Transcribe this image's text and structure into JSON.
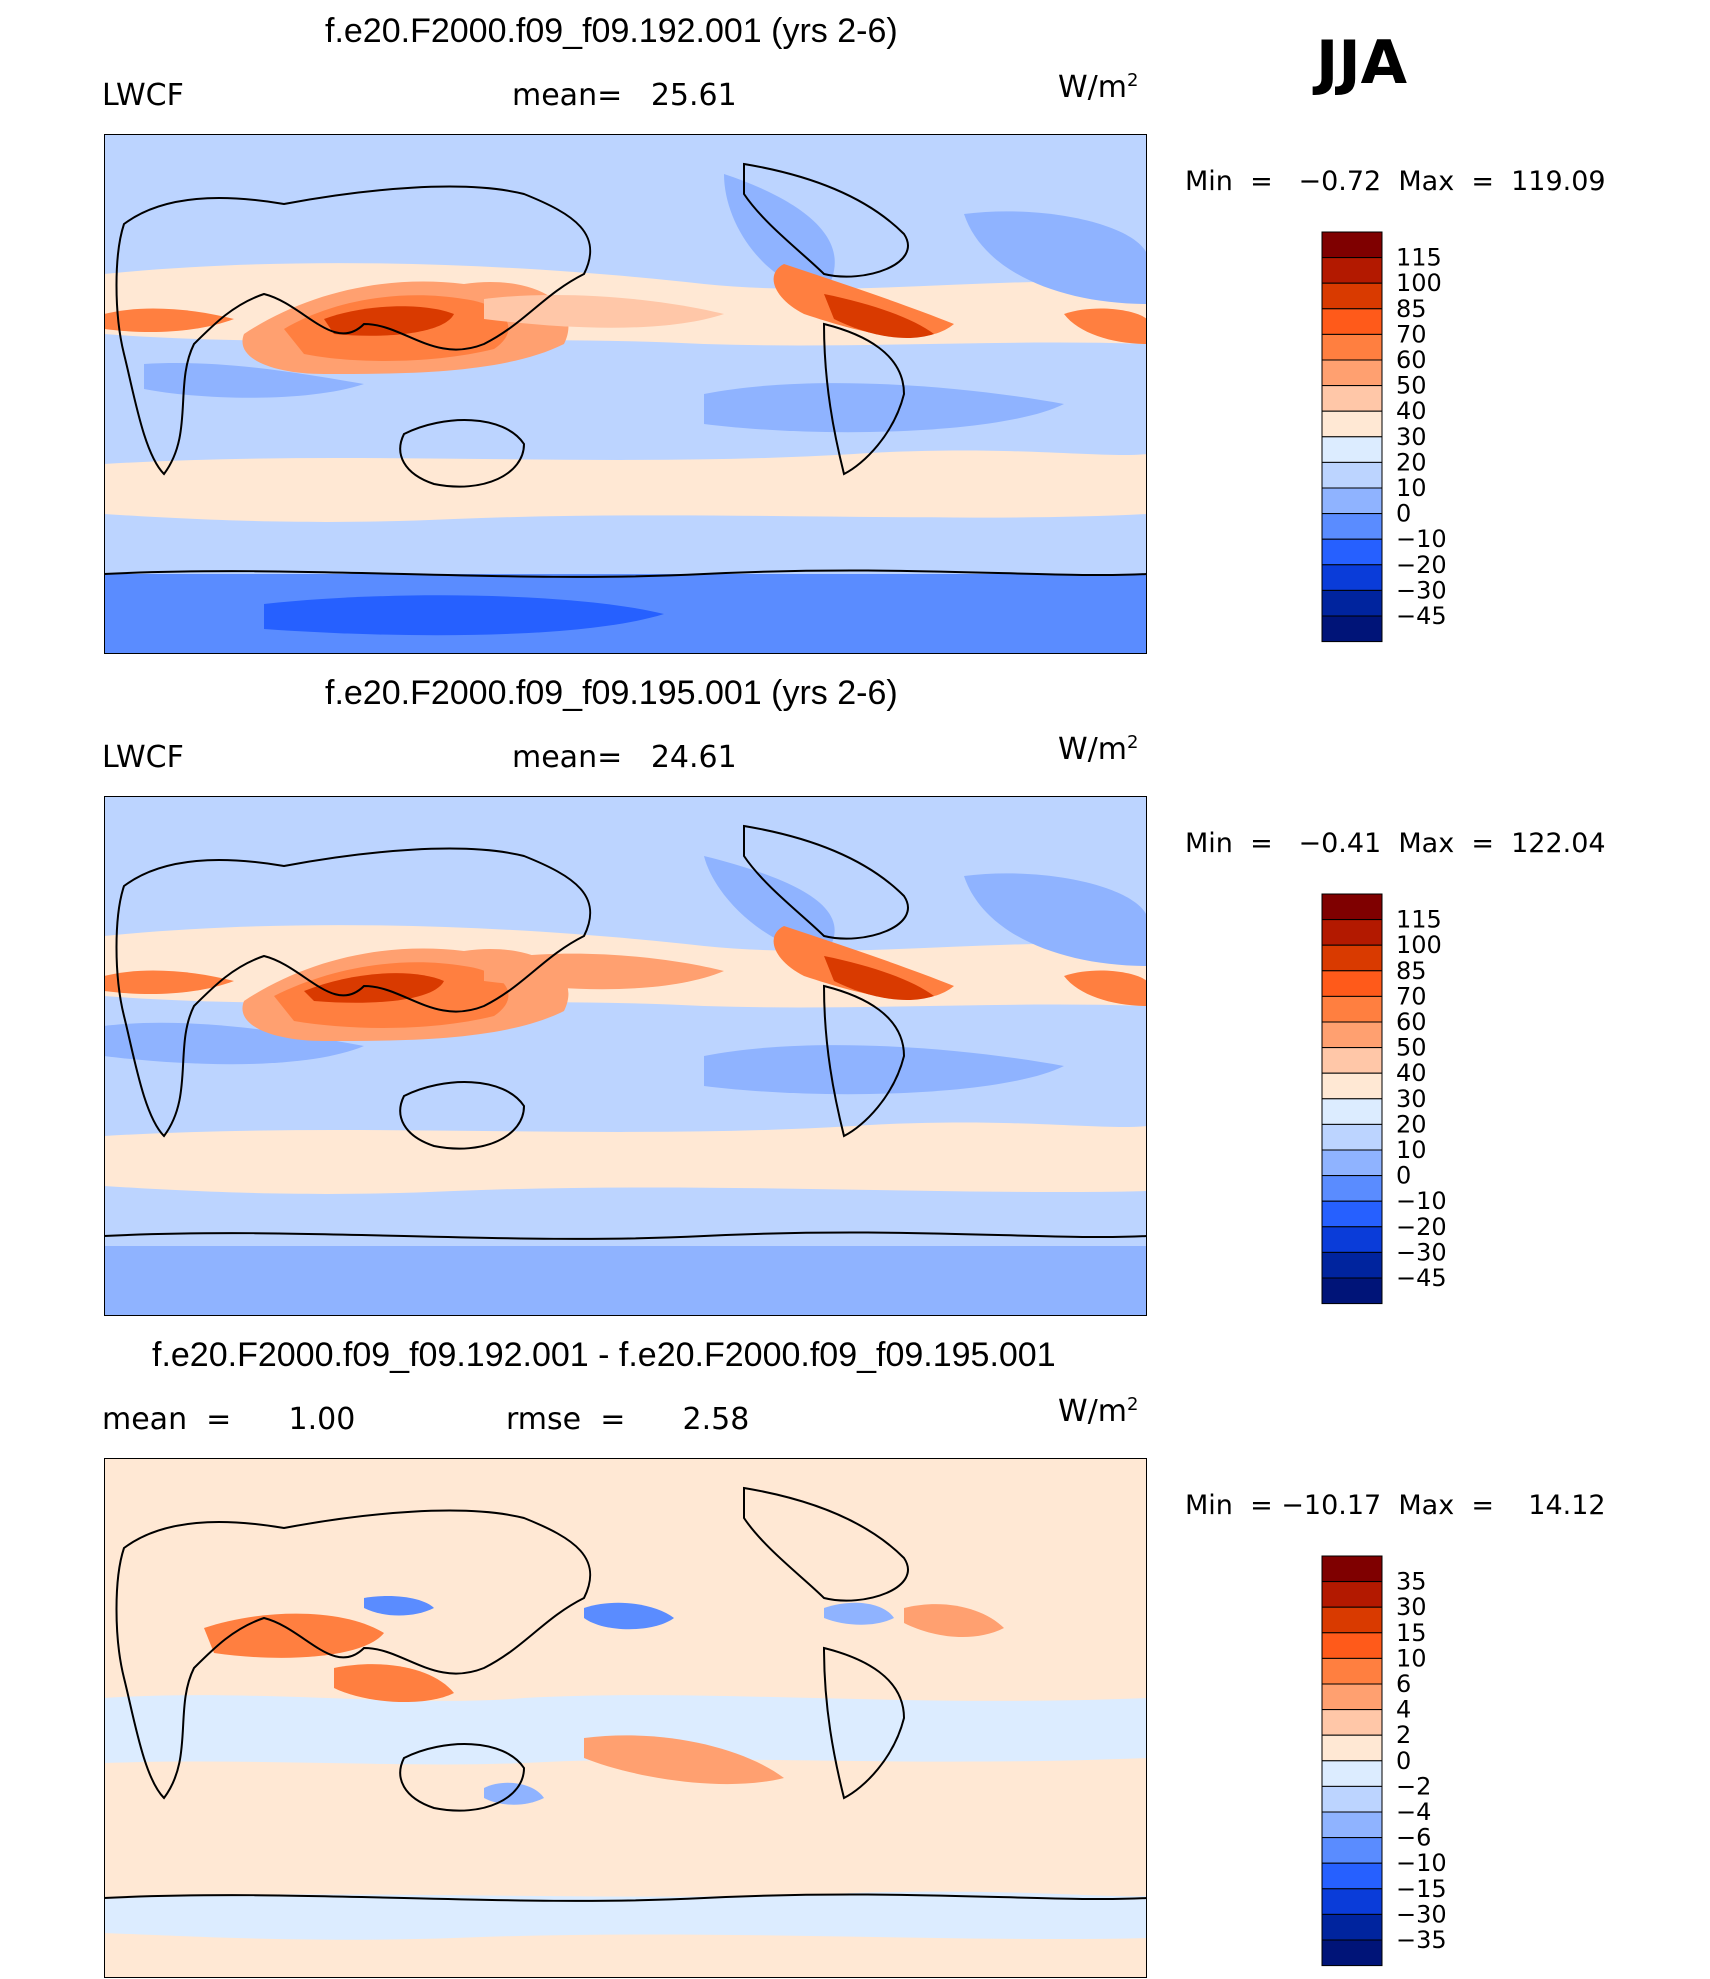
{
  "season": "JJA",
  "panels": [
    {
      "title": "f.e20.F2000.f09_f09.192.001 (yrs 2-6)",
      "left_label": "LWCF",
      "center_label": "mean=   25.61",
      "units_base": "W/m",
      "units_exp": "2",
      "minmax": "Min  =   −0.72  Max  =  119.09",
      "colorbar_labels": [
        "115",
        "100",
        "85",
        "70",
        "60",
        "50",
        "40",
        "30",
        "20",
        "10",
        "0",
        "−10",
        "−20",
        "−30",
        "−45"
      ],
      "colors": [
        "#7f0000",
        "#b31900",
        "#d93a00",
        "#ff5a1a",
        "#ff7f40",
        "#ffa070",
        "#ffc7a8",
        "#ffe8d4",
        "#dcecff",
        "#bcd4ff",
        "#8fb3ff",
        "#5a8cff",
        "#2660ff",
        "#0a3cd9",
        "#00249e",
        "#001478"
      ]
    },
    {
      "title": "f.e20.F2000.f09_f09.195.001 (yrs 2-6)",
      "left_label": "LWCF",
      "center_label": "mean=   24.61",
      "units_base": "W/m",
      "units_exp": "2",
      "minmax": "Min  =   −0.41  Max  =  122.04",
      "colorbar_labels": [
        "115",
        "100",
        "85",
        "70",
        "60",
        "50",
        "40",
        "30",
        "20",
        "10",
        "0",
        "−10",
        "−20",
        "−30",
        "−45"
      ],
      "colors": [
        "#7f0000",
        "#b31900",
        "#d93a00",
        "#ff5a1a",
        "#ff7f40",
        "#ffa070",
        "#ffc7a8",
        "#ffe8d4",
        "#dcecff",
        "#bcd4ff",
        "#8fb3ff",
        "#5a8cff",
        "#2660ff",
        "#0a3cd9",
        "#00249e",
        "#001478"
      ]
    },
    {
      "title": "f.e20.F2000.f09_f09.192.001 - f.e20.F2000.f09_f09.195.001",
      "left_label": "mean  =      1.00",
      "center_label": "rmse  =      2.58",
      "units_base": "W/m",
      "units_exp": "2",
      "minmax": "Min  = −10.17  Max  =    14.12",
      "colorbar_labels": [
        "35",
        "30",
        "15",
        "10",
        "6",
        "4",
        "2",
        "0",
        "−2",
        "−4",
        "−6",
        "−10",
        "−15",
        "−30",
        "−35"
      ],
      "colors": [
        "#7f0000",
        "#b31900",
        "#d93a00",
        "#ff5a1a",
        "#ff7f40",
        "#ffa070",
        "#ffc7a8",
        "#ffe8d4",
        "#dcecff",
        "#bcd4ff",
        "#8fb3ff",
        "#5a8cff",
        "#2660ff",
        "#0a3cd9",
        "#00249e",
        "#001478"
      ]
    }
  ],
  "chart_data": [
    {
      "type": "heatmap",
      "title": "f.e20.F2000.f09_f09.192.001 (yrs 2-6)",
      "variable": "LWCF",
      "units": "W/m2",
      "mean": 25.61,
      "min": -0.72,
      "max": 119.09,
      "contour_levels": [
        -45,
        -30,
        -20,
        -10,
        0,
        10,
        20,
        30,
        40,
        50,
        60,
        70,
        85,
        100,
        115
      ]
    },
    {
      "type": "heatmap",
      "title": "f.e20.F2000.f09_f09.195.001 (yrs 2-6)",
      "variable": "LWCF",
      "units": "W/m2",
      "mean": 24.61,
      "min": -0.41,
      "max": 122.04,
      "contour_levels": [
        -45,
        -30,
        -20,
        -10,
        0,
        10,
        20,
        30,
        40,
        50,
        60,
        70,
        85,
        100,
        115
      ]
    },
    {
      "type": "heatmap",
      "title": "f.e20.F2000.f09_f09.192.001 - f.e20.F2000.f09_f09.195.001",
      "units": "W/m2",
      "mean": 1.0,
      "rmse": 2.58,
      "min": -10.17,
      "max": 14.12,
      "contour_levels": [
        -35,
        -30,
        -15,
        -10,
        -6,
        -4,
        -2,
        0,
        2,
        4,
        6,
        10,
        15,
        30,
        35
      ]
    }
  ]
}
